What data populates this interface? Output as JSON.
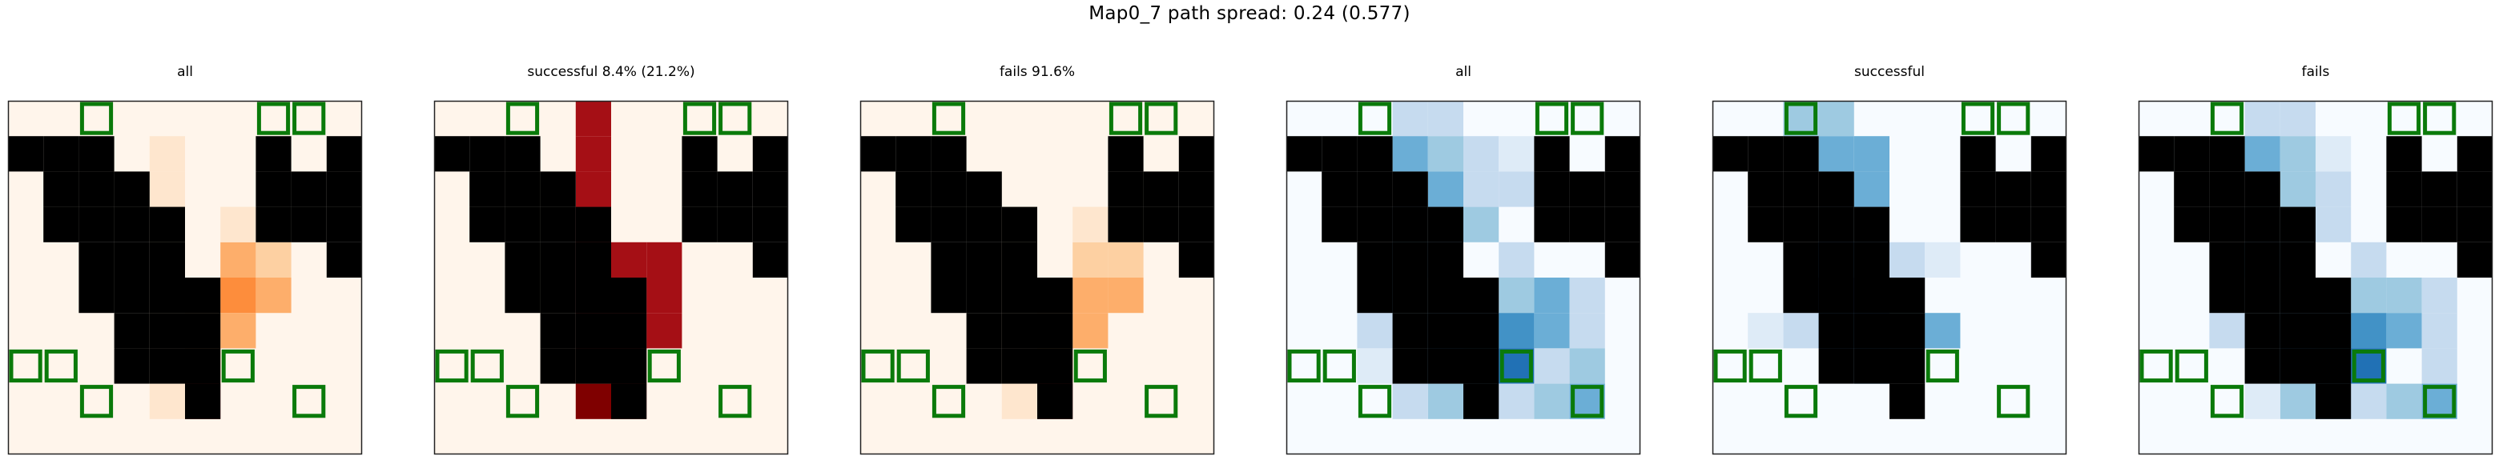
{
  "figure": {
    "suptitle": "Map0_7 path spread: 0.24 (0.577)",
    "colors": {
      "wall": "#000000",
      "marker": "#0a7a0a",
      "frame": "#222222",
      "reds": [
        "#fff5eb",
        "#fee6ce",
        "#fdd0a2",
        "#fdae6b",
        "#fd8d3c",
        "#f16913",
        "#d94801",
        "#a50f15",
        "#7f0000"
      ],
      "blues": [
        "#f7fbff",
        "#deebf7",
        "#c6dbef",
        "#9ecae1",
        "#6baed6",
        "#4292c6",
        "#2171b5",
        "#08519c",
        "#08306b"
      ]
    }
  },
  "chart_data": {
    "type": "heatmap",
    "grid_size": [
      9,
      9
    ],
    "walls": [
      [
        0,
        1
      ],
      [
        1,
        1
      ],
      [
        1,
        2
      ],
      [
        1,
        3
      ],
      [
        2,
        1
      ],
      [
        2,
        2
      ],
      [
        2,
        3
      ],
      [
        2,
        4
      ],
      [
        2,
        5
      ],
      [
        3,
        2
      ],
      [
        3,
        3
      ],
      [
        3,
        4
      ],
      [
        3,
        5
      ],
      [
        3,
        6
      ],
      [
        3,
        7
      ],
      [
        4,
        3
      ],
      [
        4,
        4
      ],
      [
        4,
        5
      ],
      [
        4,
        6
      ],
      [
        4,
        7
      ],
      [
        5,
        5
      ],
      [
        5,
        6
      ],
      [
        5,
        7
      ],
      [
        5,
        8
      ],
      [
        7,
        1
      ],
      [
        7,
        2
      ],
      [
        7,
        3
      ],
      [
        8,
        2
      ],
      [
        8,
        3
      ],
      [
        9,
        1
      ],
      [
        9,
        2
      ],
      [
        9,
        3
      ],
      [
        9,
        4
      ]
    ],
    "markers": [
      [
        2,
        0
      ],
      [
        0,
        7
      ],
      [
        1,
        7
      ],
      [
        2,
        8
      ],
      [
        8,
        8
      ],
      [
        8,
        0
      ],
      [
        7,
        0
      ],
      [
        6,
        7
      ]
    ],
    "panels": [
      {
        "title": "all",
        "cmap": "reds",
        "vmax": 1,
        "cells": [
          [
            4,
            0,
            0.06
          ],
          [
            4,
            1,
            0.08
          ],
          [
            4,
            2,
            0.08
          ],
          [
            4,
            3,
            0.09
          ],
          [
            4,
            4,
            0.1
          ],
          [
            4,
            5,
            0.12
          ],
          [
            4,
            6,
            0.12
          ],
          [
            4,
            7,
            0.15
          ],
          [
            4,
            8,
            0.15
          ],
          [
            5,
            0,
            0.04
          ],
          [
            5,
            4,
            0.06
          ],
          [
            5,
            5,
            0.22
          ],
          [
            5,
            6,
            0.28
          ],
          [
            5,
            7,
            0.6
          ],
          [
            5,
            8,
            0.95
          ],
          [
            6,
            4,
            0.35
          ],
          [
            6,
            5,
            0.45
          ],
          [
            6,
            6,
            0.4
          ],
          [
            6,
            3,
            0.12
          ],
          [
            7,
            4,
            0.3
          ],
          [
            7,
            5,
            0.35
          ],
          [
            3,
            4,
            0.04
          ]
        ]
      },
      {
        "title": "successful 8.4% (21.2%)",
        "cmap": "reds",
        "vmax": 1,
        "cells": [
          [
            4,
            0,
            0.9
          ],
          [
            4,
            1,
            0.92
          ],
          [
            4,
            2,
            0.92
          ],
          [
            4,
            3,
            0.92
          ],
          [
            4,
            4,
            0.9
          ],
          [
            4,
            5,
            0.92
          ],
          [
            4,
            6,
            0.92
          ],
          [
            4,
            7,
            0.95
          ],
          [
            4,
            8,
            0.95
          ],
          [
            3,
            6,
            0.1
          ],
          [
            3,
            7,
            0.08
          ],
          [
            5,
            4,
            0.92
          ],
          [
            5,
            5,
            0.92
          ],
          [
            5,
            6,
            0.92
          ],
          [
            5,
            7,
            0.92
          ],
          [
            5,
            8,
            0.95
          ],
          [
            6,
            4,
            0.92
          ],
          [
            6,
            5,
            0.92
          ],
          [
            6,
            6,
            0.92
          ]
        ]
      },
      {
        "title": "fails 91.6%",
        "cmap": "reds",
        "vmax": 1,
        "cells": [
          [
            4,
            0,
            0.04
          ],
          [
            4,
            1,
            0.06
          ],
          [
            4,
            2,
            0.06
          ],
          [
            4,
            3,
            0.07
          ],
          [
            4,
            4,
            0.08
          ],
          [
            4,
            5,
            0.1
          ],
          [
            4,
            6,
            0.1
          ],
          [
            4,
            7,
            0.12
          ],
          [
            4,
            8,
            0.12
          ],
          [
            5,
            4,
            0.04
          ],
          [
            5,
            5,
            0.2
          ],
          [
            5,
            6,
            0.25
          ],
          [
            5,
            7,
            0.55
          ],
          [
            5,
            8,
            0.95
          ],
          [
            6,
            4,
            0.3
          ],
          [
            6,
            5,
            0.42
          ],
          [
            6,
            6,
            0.38
          ],
          [
            6,
            3,
            0.1
          ],
          [
            7,
            4,
            0.28
          ],
          [
            7,
            5,
            0.34
          ]
        ]
      },
      {
        "title": "all",
        "cmap": "blues",
        "vmax": 1,
        "cells": [
          [
            3,
            0,
            0.3
          ],
          [
            3,
            1,
            0.45
          ],
          [
            4,
            0,
            0.25
          ],
          [
            4,
            1,
            0.35
          ],
          [
            4,
            2,
            0.45
          ],
          [
            5,
            1,
            0.2
          ],
          [
            5,
            2,
            0.3
          ],
          [
            5,
            3,
            0.35
          ],
          [
            6,
            1,
            0.15
          ],
          [
            6,
            2,
            0.2
          ],
          [
            3,
            3,
            0.35
          ],
          [
            3,
            4,
            0.55
          ],
          [
            4,
            3,
            0.3
          ],
          [
            4,
            4,
            0.45
          ],
          [
            3,
            5,
            0.5
          ],
          [
            3,
            6,
            0.35
          ],
          [
            3,
            7,
            0.3
          ],
          [
            4,
            6,
            0.6
          ],
          [
            4,
            7,
            0.7
          ],
          [
            4,
            8,
            0.4
          ],
          [
            5,
            6,
            0.65
          ],
          [
            5,
            7,
            1.0
          ],
          [
            5,
            8,
            0.55
          ],
          [
            6,
            4,
            0.25
          ],
          [
            6,
            5,
            0.4
          ],
          [
            6,
            6,
            0.6
          ],
          [
            6,
            7,
            0.7
          ],
          [
            7,
            5,
            0.45
          ],
          [
            7,
            6,
            0.5
          ],
          [
            7,
            7,
            0.3
          ],
          [
            8,
            5,
            0.25
          ],
          [
            8,
            6,
            0.3
          ],
          [
            8,
            7,
            0.35
          ],
          [
            6,
            8,
            0.3
          ],
          [
            7,
            8,
            0.4
          ],
          [
            8,
            8,
            0.45
          ],
          [
            2,
            6,
            0.25
          ],
          [
            3,
            8,
            0.2
          ],
          [
            2,
            7,
            0.15
          ]
        ]
      },
      {
        "title": "successful",
        "cmap": "blues",
        "vmax": 1,
        "cells": [
          [
            2,
            0,
            0.4
          ],
          [
            3,
            0,
            0.35
          ],
          [
            3,
            1,
            0.45
          ],
          [
            4,
            1,
            0.45
          ],
          [
            4,
            2,
            0.45
          ],
          [
            3,
            3,
            0.4
          ],
          [
            3,
            4,
            0.7
          ],
          [
            3,
            5,
            1.0
          ],
          [
            3,
            6,
            0.75
          ],
          [
            4,
            3,
            0.3
          ],
          [
            4,
            4,
            0.6
          ],
          [
            4,
            5,
            0.85
          ],
          [
            4,
            6,
            0.7
          ],
          [
            4,
            7,
            0.65
          ],
          [
            5,
            6,
            0.6
          ],
          [
            6,
            6,
            0.5
          ],
          [
            5,
            4,
            0.2
          ],
          [
            5,
            5,
            0.25
          ],
          [
            2,
            6,
            0.3
          ],
          [
            1,
            6,
            0.1
          ],
          [
            6,
            4,
            0.12
          ]
        ]
      },
      {
        "title": "fails",
        "cmap": "blues",
        "vmax": 1,
        "cells": [
          [
            3,
            0,
            0.3
          ],
          [
            3,
            1,
            0.45
          ],
          [
            4,
            0,
            0.2
          ],
          [
            4,
            1,
            0.35
          ],
          [
            4,
            2,
            0.4
          ],
          [
            5,
            1,
            0.15
          ],
          [
            5,
            2,
            0.25
          ],
          [
            5,
            3,
            0.2
          ],
          [
            3,
            3,
            0.3
          ],
          [
            3,
            4,
            0.5
          ],
          [
            4,
            3,
            0.25
          ],
          [
            4,
            4,
            0.4
          ],
          [
            3,
            5,
            0.4
          ],
          [
            3,
            6,
            0.35
          ],
          [
            3,
            7,
            0.3
          ],
          [
            4,
            6,
            0.6
          ],
          [
            4,
            7,
            0.7
          ],
          [
            4,
            8,
            0.35
          ],
          [
            5,
            6,
            0.65
          ],
          [
            5,
            7,
            1.0
          ],
          [
            5,
            8,
            0.5
          ],
          [
            6,
            4,
            0.25
          ],
          [
            6,
            5,
            0.4
          ],
          [
            6,
            6,
            0.6
          ],
          [
            6,
            7,
            0.7
          ],
          [
            7,
            5,
            0.35
          ],
          [
            7,
            6,
            0.45
          ],
          [
            8,
            5,
            0.25
          ],
          [
            8,
            6,
            0.3
          ],
          [
            8,
            7,
            0.3
          ],
          [
            6,
            8,
            0.25
          ],
          [
            7,
            8,
            0.35
          ],
          [
            8,
            8,
            0.45
          ],
          [
            2,
            6,
            0.2
          ],
          [
            3,
            8,
            0.15
          ]
        ]
      }
    ]
  }
}
